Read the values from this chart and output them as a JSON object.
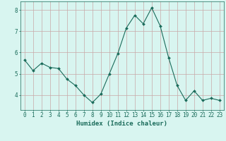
{
  "x": [
    0,
    1,
    2,
    3,
    4,
    5,
    6,
    7,
    8,
    9,
    10,
    11,
    12,
    13,
    14,
    15,
    16,
    17,
    18,
    19,
    20,
    21,
    22,
    23
  ],
  "y": [
    5.65,
    5.15,
    5.5,
    5.3,
    5.25,
    4.75,
    4.45,
    4.0,
    3.65,
    4.05,
    5.0,
    5.95,
    7.15,
    7.75,
    7.35,
    8.1,
    7.25,
    5.75,
    4.45,
    3.75,
    4.2,
    3.75,
    3.85,
    3.75
  ],
  "line_color": "#1a6b5a",
  "marker": "D",
  "marker_size": 2.0,
  "bg_color": "#d8f5f0",
  "grid_color": "#c8a8a8",
  "xlabel": "Humidex (Indice chaleur)",
  "ylim": [
    3.3,
    8.4
  ],
  "xlim": [
    -0.5,
    23.5
  ],
  "yticks": [
    4,
    5,
    6,
    7,
    8
  ],
  "xticks": [
    0,
    1,
    2,
    3,
    4,
    5,
    6,
    7,
    8,
    9,
    10,
    11,
    12,
    13,
    14,
    15,
    16,
    17,
    18,
    19,
    20,
    21,
    22,
    23
  ],
  "tick_color": "#1a6b5a",
  "label_color": "#1a6b5a",
  "font_size": 5.5,
  "xlabel_fontsize": 6.5,
  "linewidth": 0.8
}
